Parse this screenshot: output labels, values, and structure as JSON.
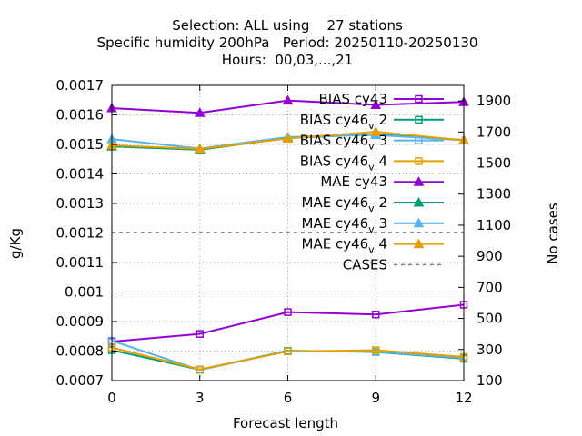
{
  "chart_data": {
    "type": "line",
    "title_lines": [
      "Selection: ALL using    27 stations",
      "Specific humidity 200hPa   Period: 20250110-20250130",
      "Hours:  00,03,...,21"
    ],
    "xlabel": "Forecast length",
    "ylabel": "g/Kg",
    "y2label": "No cases",
    "x": [
      0,
      3,
      6,
      9,
      12
    ],
    "x_ticks": [
      "0",
      "3",
      "6",
      "9",
      "12"
    ],
    "xlim": [
      0,
      12
    ],
    "ylim": [
      0.0007,
      0.0017
    ],
    "y_ticks": [
      "0.0007",
      "0.0008",
      "0.0009",
      "0.001",
      "0.0011",
      "0.0012",
      "0.0013",
      "0.0014",
      "0.0015",
      "0.0016",
      "0.0017"
    ],
    "y2lim": [
      100,
      2000
    ],
    "y2_ticks": [
      "100",
      "300",
      "500",
      "700",
      "900",
      "1100",
      "1300",
      "1500",
      "1700",
      "1900"
    ],
    "grid": true,
    "legend_position": "top-right",
    "series": [
      {
        "name": "BIAS cy43",
        "name_base": "BIAS cy43",
        "name_sub": "",
        "name_rest": "",
        "color": "#9400d3",
        "marker": "square-open",
        "dash": false,
        "axis": "y",
        "values": [
          0.000832,
          0.000858,
          0.000932,
          0.000924,
          0.000957
        ]
      },
      {
        "name": "BIAS cy46_v 2",
        "name_base": "BIAS cy46",
        "name_sub": "v",
        "name_rest": " 2",
        "color": "#009e73",
        "marker": "square-open",
        "dash": false,
        "axis": "y",
        "values": [
          0.000803,
          0.000737,
          0.000801,
          0.000797,
          0.000774
        ]
      },
      {
        "name": "BIAS cy46_v 3",
        "name_base": "BIAS cy46",
        "name_sub": "v",
        "name_rest": " 3",
        "color": "#56b4e9",
        "marker": "square-open",
        "dash": false,
        "axis": "y",
        "values": [
          0.000835,
          0.000736,
          0.0008,
          0.000798,
          0.000776
        ]
      },
      {
        "name": "BIAS cy46_v 4",
        "name_base": "BIAS cy46",
        "name_sub": "v",
        "name_rest": " 4",
        "color": "#e69f00",
        "marker": "square-open",
        "dash": false,
        "axis": "y",
        "values": [
          0.000812,
          0.000738,
          0.000799,
          0.000803,
          0.00078
        ]
      },
      {
        "name": "MAE cy43",
        "name_base": "MAE cy43",
        "name_sub": "",
        "name_rest": "",
        "color": "#9400d3",
        "marker": "triangle-filled",
        "dash": false,
        "axis": "y",
        "values": [
          0.001623,
          0.001607,
          0.001649,
          0.001634,
          0.001644
        ]
      },
      {
        "name": "MAE cy46_v 2",
        "name_base": "MAE cy46",
        "name_sub": "v",
        "name_rest": " 2",
        "color": "#009e73",
        "marker": "triangle-filled",
        "dash": false,
        "axis": "y",
        "values": [
          0.001493,
          0.001482,
          0.001522,
          0.001534,
          0.001515
        ]
      },
      {
        "name": "MAE cy46_v 3",
        "name_base": "MAE cy46",
        "name_sub": "v",
        "name_rest": " 3",
        "color": "#56b4e9",
        "marker": "triangle-filled",
        "dash": false,
        "axis": "y",
        "values": [
          0.001518,
          0.001486,
          0.001525,
          0.001532,
          0.001514
        ]
      },
      {
        "name": "MAE cy46_v 4",
        "name_base": "MAE cy46",
        "name_sub": "v",
        "name_rest": " 4",
        "color": "#e69f00",
        "marker": "triangle-filled",
        "dash": false,
        "axis": "y",
        "values": [
          0.001497,
          0.001485,
          0.00152,
          0.001543,
          0.001514
        ]
      },
      {
        "name": "CASES",
        "name_base": "CASES",
        "name_sub": "",
        "name_rest": "",
        "color": "#808080",
        "marker": "none",
        "dash": true,
        "axis": "y2",
        "values": [
          1054,
          1054,
          1054,
          1054,
          1054
        ]
      }
    ]
  }
}
